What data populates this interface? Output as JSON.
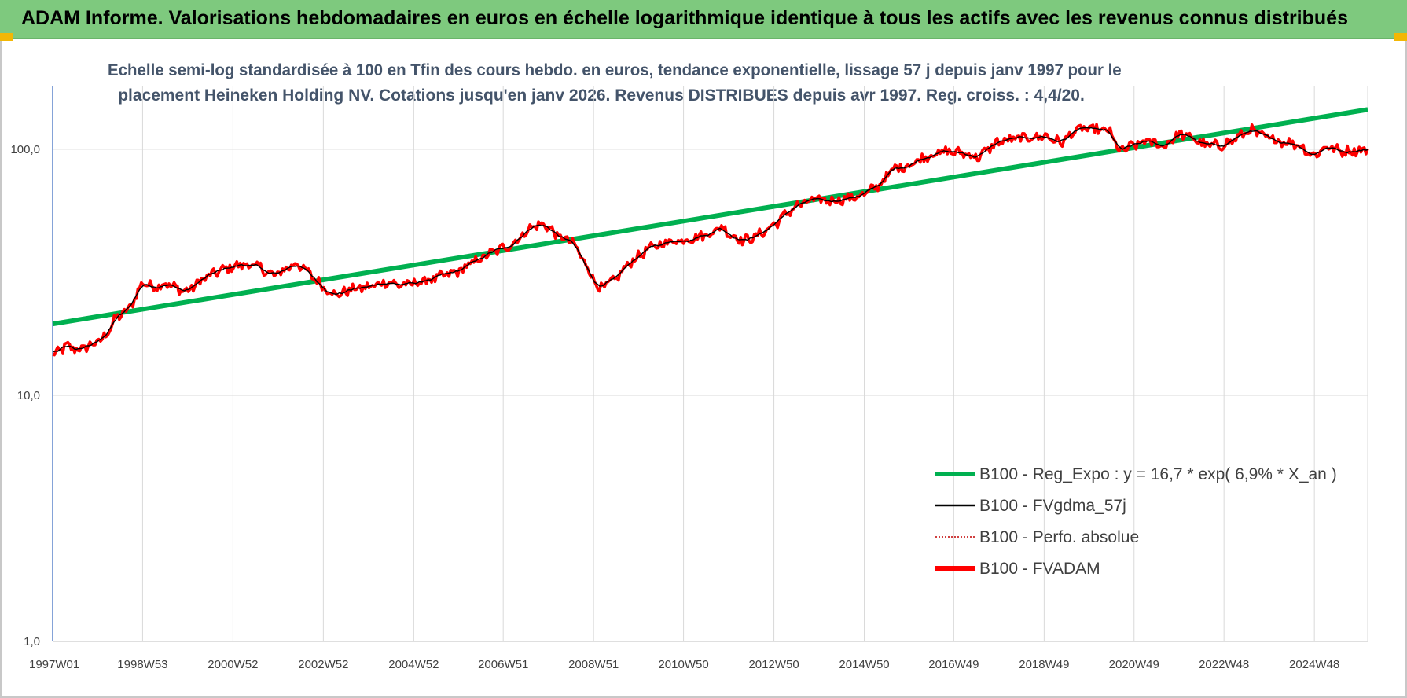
{
  "header": {
    "title": "ADAM Informe. Valorisations hebdomadaires en euros en échelle logarithmique identique à tous les actifs avec les revenus connus distribués"
  },
  "chart_data": {
    "type": "line",
    "title_line1": "Echelle semi-log standardisée à 100 en Tfin des cours hebdo. en euros, tendance exponentielle, lissage 57 j depuis janv 1997 pour le",
    "title_line2": "placement Heineken Holding NV. Cotations jusqu'en janv 2026. Revenus DISTRIBUES depuis avr 1997. Reg. croiss. : 4,4/20.",
    "y_scale": "log",
    "ylim": [
      1,
      180
    ],
    "yticks": [
      1,
      10,
      100
    ],
    "ytick_labels": [
      "1,0",
      "10,0",
      "100,0"
    ],
    "xlim": [
      1997.0,
      2026.1
    ],
    "xtick_positions": [
      1997.0,
      1998.99,
      2000.99,
      2002.99,
      2004.99,
      2006.97,
      2008.97,
      2010.96,
      2012.96,
      2014.96,
      2016.94,
      2018.94,
      2020.93,
      2022.92,
      2024.92
    ],
    "xtick_labels": [
      "1997W01",
      "1998W53",
      "2000W52",
      "2002W52",
      "2004W52",
      "2006W51",
      "2008W51",
      "2010W50",
      "2012W50",
      "2014W50",
      "2016W49",
      "2018W49",
      "2020W49",
      "2022W48",
      "2024W48"
    ],
    "grid": true,
    "legend_position": "bottom-right",
    "series": [
      {
        "name": "B100 - Reg_Expo : y = 16,7 * exp( 6,9% *  X_an )",
        "color": "#00b050",
        "style": "thick",
        "points": [
          [
            1997.0,
            19.5
          ],
          [
            2026.1,
            145
          ]
        ]
      },
      {
        "name": "B100 - FVgdma_57j",
        "color": "#000000",
        "style": "thin",
        "smooth_of": "B100 - FVADAM"
      },
      {
        "name": "B100 - Perfo. absolue",
        "color": "#c00000",
        "style": "dotted",
        "legend_only": true
      },
      {
        "name": "B100 - FVADAM",
        "color": "#ff0000",
        "style": "thick",
        "points": [
          [
            1997.0,
            14.5
          ],
          [
            1997.3,
            15.8
          ],
          [
            1997.6,
            15.3
          ],
          [
            1997.9,
            16.2
          ],
          [
            1998.1,
            16.8
          ],
          [
            1998.4,
            20.5
          ],
          [
            1998.7,
            22.5
          ],
          [
            1999.0,
            29.0
          ],
          [
            1999.2,
            27.5
          ],
          [
            1999.5,
            28.5
          ],
          [
            1999.8,
            27.0
          ],
          [
            2000.0,
            26.5
          ],
          [
            2000.3,
            29.5
          ],
          [
            2000.6,
            31.5
          ],
          [
            2001.0,
            33.5
          ],
          [
            2001.3,
            34.0
          ],
          [
            2001.6,
            33.0
          ],
          [
            2001.9,
            30.5
          ],
          [
            2002.2,
            33.0
          ],
          [
            2002.4,
            34.5
          ],
          [
            2002.7,
            31.0
          ],
          [
            2003.0,
            27.5
          ],
          [
            2003.3,
            25.5
          ],
          [
            2003.6,
            27.0
          ],
          [
            2004.0,
            27.5
          ],
          [
            2004.4,
            29.0
          ],
          [
            2004.7,
            28.0
          ],
          [
            2005.0,
            28.5
          ],
          [
            2005.5,
            30.0
          ],
          [
            2006.0,
            32.0
          ],
          [
            2006.4,
            35.5
          ],
          [
            2006.8,
            38.5
          ],
          [
            2007.2,
            41.5
          ],
          [
            2007.6,
            48.5
          ],
          [
            2007.9,
            49.5
          ],
          [
            2008.2,
            44.0
          ],
          [
            2008.5,
            42.0
          ],
          [
            2008.8,
            34.0
          ],
          [
            2009.1,
            27.0
          ],
          [
            2009.4,
            29.0
          ],
          [
            2009.8,
            35.0
          ],
          [
            2010.2,
            39.5
          ],
          [
            2010.6,
            42.0
          ],
          [
            2011.0,
            43.0
          ],
          [
            2011.5,
            45.0
          ],
          [
            2011.8,
            48.5
          ],
          [
            2012.0,
            45.0
          ],
          [
            2012.3,
            42.5
          ],
          [
            2012.6,
            44.5
          ],
          [
            2013.0,
            50.0
          ],
          [
            2013.4,
            58.0
          ],
          [
            2013.8,
            62.0
          ],
          [
            2014.2,
            62.0
          ],
          [
            2014.6,
            63.0
          ],
          [
            2015.0,
            66.0
          ],
          [
            2015.3,
            72.0
          ],
          [
            2015.6,
            83.0
          ],
          [
            2016.0,
            87.0
          ],
          [
            2016.4,
            95.0
          ],
          [
            2016.8,
            98.0
          ],
          [
            2017.2,
            96.0
          ],
          [
            2017.5,
            93.0
          ],
          [
            2017.9,
            107.0
          ],
          [
            2018.3,
            110.0
          ],
          [
            2018.7,
            112.0
          ],
          [
            2019.0,
            113.0
          ],
          [
            2019.3,
            106.0
          ],
          [
            2019.7,
            121.0
          ],
          [
            2020.1,
            120.0
          ],
          [
            2020.4,
            118.0
          ],
          [
            2020.6,
            98.0
          ],
          [
            2020.9,
            103.0
          ],
          [
            2021.2,
            108.0
          ],
          [
            2021.6,
            103.0
          ],
          [
            2021.9,
            115.0
          ],
          [
            2022.2,
            112.0
          ],
          [
            2022.5,
            104.0
          ],
          [
            2022.8,
            103.0
          ],
          [
            2023.1,
            108.0
          ],
          [
            2023.5,
            120.0
          ],
          [
            2023.8,
            112.0
          ],
          [
            2024.2,
            108.0
          ],
          [
            2024.6,
            104.0
          ],
          [
            2024.9,
            94.0
          ],
          [
            2025.2,
            103.0
          ],
          [
            2025.5,
            98.0
          ],
          [
            2025.8,
            99.0
          ],
          [
            2026.1,
            100.0
          ]
        ]
      }
    ]
  }
}
